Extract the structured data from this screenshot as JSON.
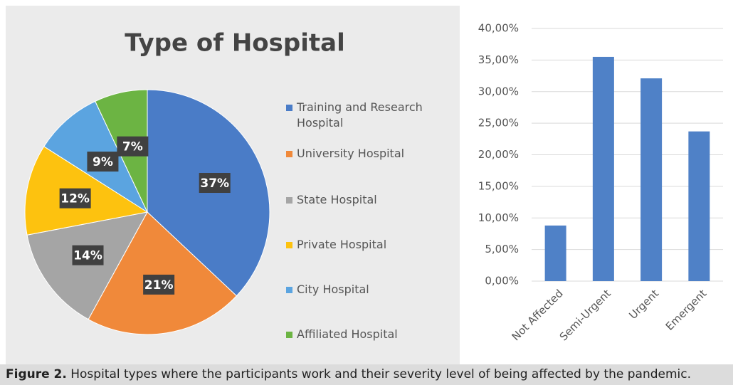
{
  "chart_data": [
    {
      "type": "pie",
      "title": "Type of Hospital",
      "categories": [
        "Training and Research Hospital",
        "University Hospital",
        "State Hospital",
        "Private Hospital",
        "City Hospital",
        "Affiliated Hospital"
      ],
      "values": [
        37,
        21,
        14,
        12,
        9,
        7
      ],
      "value_labels": [
        "37%",
        "21%",
        "14%",
        "12%",
        "9%",
        "7%"
      ],
      "colors": [
        "#4a7cc7",
        "#f0893a",
        "#a5a5a5",
        "#fdc20f",
        "#5ba4e0",
        "#6cb443"
      ],
      "legend": "right"
    },
    {
      "type": "bar",
      "categories": [
        "Not Affected",
        "Semi-Urgent",
        "Urgent",
        "Emergent"
      ],
      "values": [
        8.8,
        35.5,
        32.1,
        23.7
      ],
      "color": "#4f81c7",
      "ylim": [
        0,
        40
      ],
      "yticks": [
        {
          "value": 0,
          "label": "0,00%"
        },
        {
          "value": 5,
          "label": "5,00%"
        },
        {
          "value": 10,
          "label": "10,00%"
        },
        {
          "value": 15,
          "label": "15,00%"
        },
        {
          "value": 20,
          "label": "20,00%"
        },
        {
          "value": 25,
          "label": "25,00%"
        },
        {
          "value": 30,
          "label": "30,00%"
        },
        {
          "value": 35,
          "label": "35,00%"
        },
        {
          "value": 40,
          "label": "40,00%"
        }
      ],
      "grid": true
    }
  ],
  "caption": {
    "label": "Figure 2.",
    "text": "Hospital types where the participants work and their severity level of being affected by the pandemic."
  }
}
